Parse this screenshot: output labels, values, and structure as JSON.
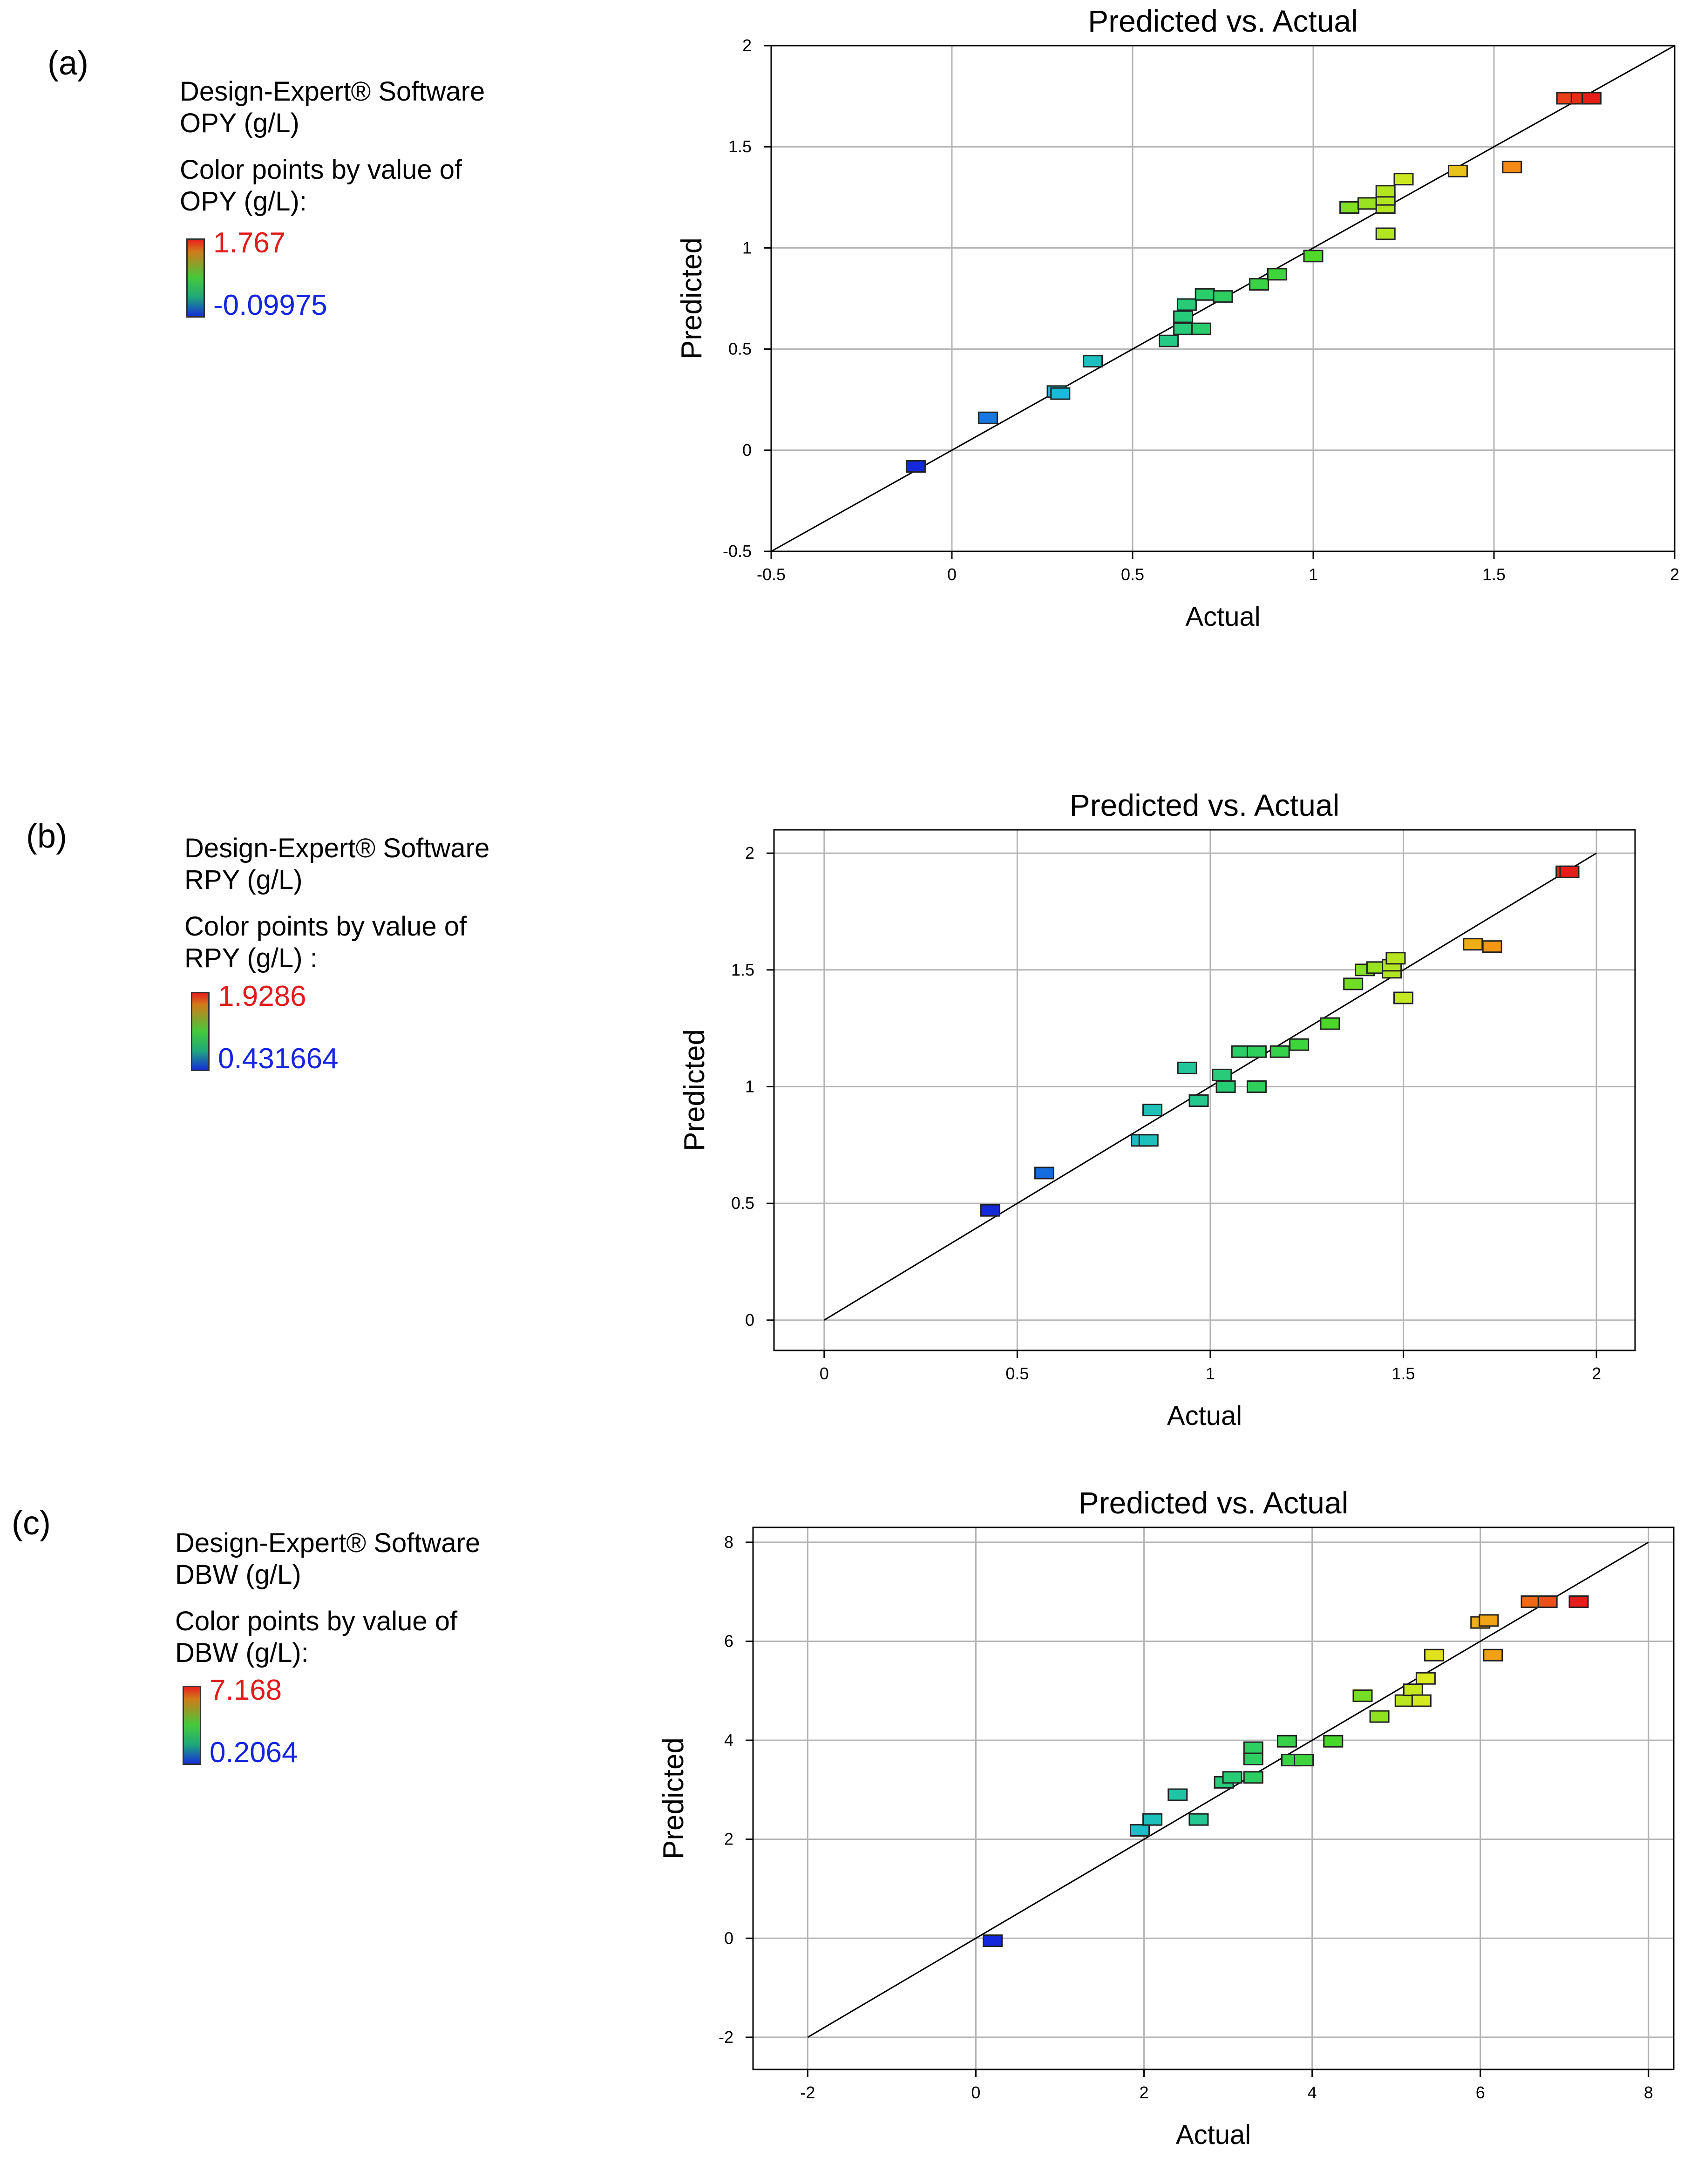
{
  "panels": [
    {
      "label": "(a)",
      "software": "Design-Expert® Software",
      "response": "OPY (g/L)",
      "color_by": "Color points by value of",
      "color_by_var": "OPY (g/L):",
      "legend_max": "1.767",
      "legend_min": "-0.09975"
    },
    {
      "label": "(b)",
      "software": "Design-Expert® Software",
      "response": "RPY (g/L)",
      "color_by": "Color points by value of",
      "color_by_var": "RPY (g/L) :",
      "legend_max": "1.9286",
      "legend_min": "0.431664"
    },
    {
      "label": "(c)",
      "software": "Design-Expert® Software",
      "response": "DBW (g/L)",
      "color_by": "Color points by value of",
      "color_by_var": "DBW (g/L):",
      "legend_max": "7.168",
      "legend_min": "0.2064"
    }
  ],
  "colors": {
    "grid": "#b4b4b4",
    "frame": "#000000",
    "marker_edge": "#222222",
    "legend_max": "#e21b1b",
    "legend_min": "#1424e0"
  },
  "chart_data": [
    {
      "type": "scatter",
      "title": "Predicted vs. Actual",
      "xlabel": "Actual",
      "ylabel": "Predicted",
      "xlim": [
        -0.5,
        2
      ],
      "ylim": [
        -0.5,
        2
      ],
      "xticks": [
        "-0.5",
        "0",
        "0.5",
        "1",
        "1.5",
        "2"
      ],
      "yticks": [
        "-0.5",
        "0",
        "0.5",
        "1",
        "1.5",
        "2"
      ],
      "xtick_values": [
        -0.5,
        0,
        0.5,
        1,
        1.5,
        2
      ],
      "ytick_values": [
        -0.5,
        0,
        0.5,
        1,
        1.5,
        2
      ],
      "color_range": [
        -0.09975,
        1.767
      ],
      "reference_line": [
        [
          -0.5,
          -0.5
        ],
        [
          2,
          2
        ]
      ],
      "points": [
        [
          -0.1,
          -0.08
        ],
        [
          0.1,
          0.16
        ],
        [
          0.29,
          0.29
        ],
        [
          0.3,
          0.28
        ],
        [
          0.39,
          0.44
        ],
        [
          0.6,
          0.54
        ],
        [
          0.64,
          0.6
        ],
        [
          0.64,
          0.66
        ],
        [
          0.65,
          0.72
        ],
        [
          0.69,
          0.6
        ],
        [
          0.7,
          0.77
        ],
        [
          0.75,
          0.76
        ],
        [
          0.85,
          0.82
        ],
        [
          0.9,
          0.87
        ],
        [
          1.0,
          0.96
        ],
        [
          1.1,
          1.2
        ],
        [
          1.15,
          1.22
        ],
        [
          1.2,
          1.2
        ],
        [
          1.2,
          1.24
        ],
        [
          1.2,
          1.28
        ],
        [
          1.2,
          1.07
        ],
        [
          1.25,
          1.34
        ],
        [
          1.4,
          1.38
        ],
        [
          1.55,
          1.4
        ],
        [
          1.7,
          1.74
        ],
        [
          1.74,
          1.74
        ],
        [
          1.77,
          1.74
        ]
      ]
    },
    {
      "type": "scatter",
      "title": "Predicted vs. Actual",
      "xlabel": "Actual",
      "ylabel": "Predicted",
      "xlim": [
        -0.13,
        2.1
      ],
      "ylim": [
        -0.13,
        2.1
      ],
      "xticks": [
        "0",
        "0.5",
        "1",
        "1.5",
        "2"
      ],
      "yticks": [
        "0",
        "0.5",
        "1",
        "1.5",
        "2"
      ],
      "xtick_values": [
        0,
        0.5,
        1,
        1.5,
        2
      ],
      "ytick_values": [
        0,
        0.5,
        1,
        1.5,
        2
      ],
      "color_range": [
        0.431664,
        1.9286
      ],
      "reference_line": [
        [
          0,
          0
        ],
        [
          2,
          2
        ]
      ],
      "points": [
        [
          0.43,
          0.47
        ],
        [
          0.57,
          0.63
        ],
        [
          0.82,
          0.77
        ],
        [
          0.84,
          0.77
        ],
        [
          0.85,
          0.9
        ],
        [
          0.94,
          1.08
        ],
        [
          0.97,
          0.94
        ],
        [
          1.03,
          1.05
        ],
        [
          1.04,
          1.0
        ],
        [
          1.08,
          1.15
        ],
        [
          1.12,
          1.15
        ],
        [
          1.12,
          1.0
        ],
        [
          1.18,
          1.15
        ],
        [
          1.23,
          1.18
        ],
        [
          1.31,
          1.27
        ],
        [
          1.37,
          1.44
        ],
        [
          1.4,
          1.5
        ],
        [
          1.43,
          1.51
        ],
        [
          1.47,
          1.49
        ],
        [
          1.47,
          1.52
        ],
        [
          1.48,
          1.55
        ],
        [
          1.5,
          1.38
        ],
        [
          1.68,
          1.61
        ],
        [
          1.73,
          1.6
        ],
        [
          1.92,
          1.92
        ],
        [
          1.93,
          1.92
        ]
      ]
    },
    {
      "type": "scatter",
      "title": "Predicted vs. Actual",
      "xlabel": "Actual",
      "ylabel": "Predicted",
      "xlim": [
        -2.65,
        8.3
      ],
      "ylim": [
        -2.65,
        8.3
      ],
      "xticks": [
        "-2",
        "0",
        "2",
        "4",
        "6",
        "8"
      ],
      "yticks": [
        "-2",
        "0",
        "2",
        "4",
        "6",
        "8"
      ],
      "xtick_values": [
        -2,
        0,
        2,
        4,
        6,
        8
      ],
      "ytick_values": [
        -2,
        0,
        2,
        4,
        6,
        8
      ],
      "color_range": [
        0.2064,
        7.168
      ],
      "reference_line": [
        [
          -2,
          -2
        ],
        [
          8,
          8
        ]
      ],
      "points": [
        [
          0.2,
          -0.05
        ],
        [
          1.95,
          2.18
        ],
        [
          2.1,
          2.4
        ],
        [
          2.4,
          2.9
        ],
        [
          2.65,
          2.4
        ],
        [
          2.95,
          3.15
        ],
        [
          3.05,
          3.25
        ],
        [
          3.3,
          3.25
        ],
        [
          3.3,
          3.62
        ],
        [
          3.3,
          3.85
        ],
        [
          3.7,
          3.98
        ],
        [
          3.75,
          3.6
        ],
        [
          3.9,
          3.6
        ],
        [
          4.25,
          3.98
        ],
        [
          4.6,
          4.9
        ],
        [
          4.8,
          4.48
        ],
        [
          5.1,
          4.8
        ],
        [
          5.2,
          5.02
        ],
        [
          5.3,
          4.8
        ],
        [
          5.35,
          5.25
        ],
        [
          5.45,
          5.72
        ],
        [
          6.0,
          6.38
        ],
        [
          6.1,
          6.42
        ],
        [
          6.15,
          5.72
        ],
        [
          6.6,
          6.8
        ],
        [
          6.8,
          6.8
        ],
        [
          7.17,
          6.8
        ]
      ]
    }
  ]
}
